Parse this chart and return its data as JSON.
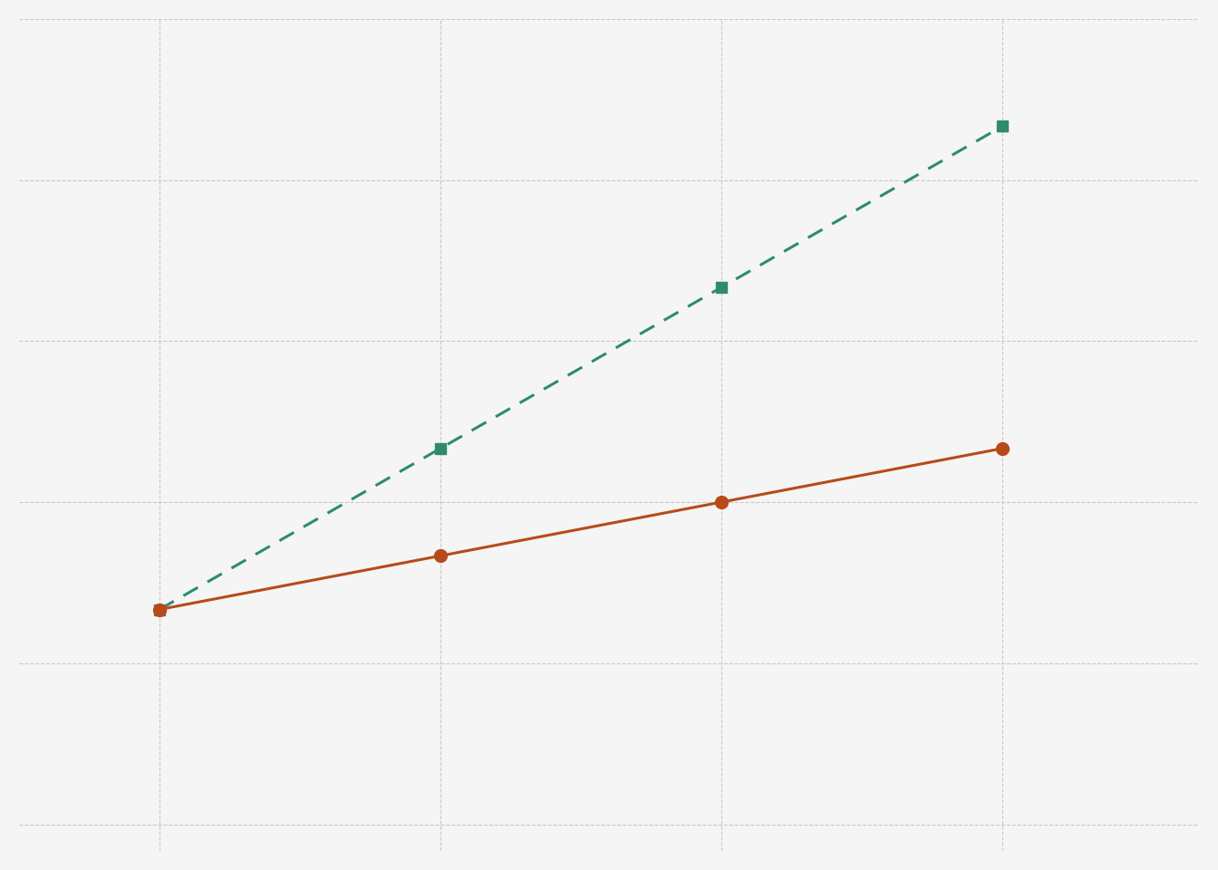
{
  "line1": {
    "x": [
      1,
      2,
      3,
      4
    ],
    "y": [
      1,
      4,
      7,
      10
    ],
    "color": "#2e8b6e",
    "linestyle": "--",
    "marker": "s",
    "markersize": 9,
    "linewidth": 2.2,
    "dashes": [
      6,
      4
    ]
  },
  "line2": {
    "x": [
      1,
      2,
      3,
      4
    ],
    "y": [
      1,
      2,
      3,
      4
    ],
    "color": "#b84a1a",
    "linestyle": "-",
    "marker": "o",
    "markersize": 10,
    "linewidth": 2.2
  },
  "xlim": [
    0.5,
    4.7
  ],
  "ylim": [
    -3.5,
    12
  ],
  "xticks": [
    1,
    2,
    3,
    4
  ],
  "yticks": [
    -3,
    0,
    3,
    6,
    9,
    12
  ],
  "background_color": "#f5f5f5",
  "grid_color": "#c8c8c8",
  "grid_linestyle": "--",
  "grid_linewidth": 0.8
}
